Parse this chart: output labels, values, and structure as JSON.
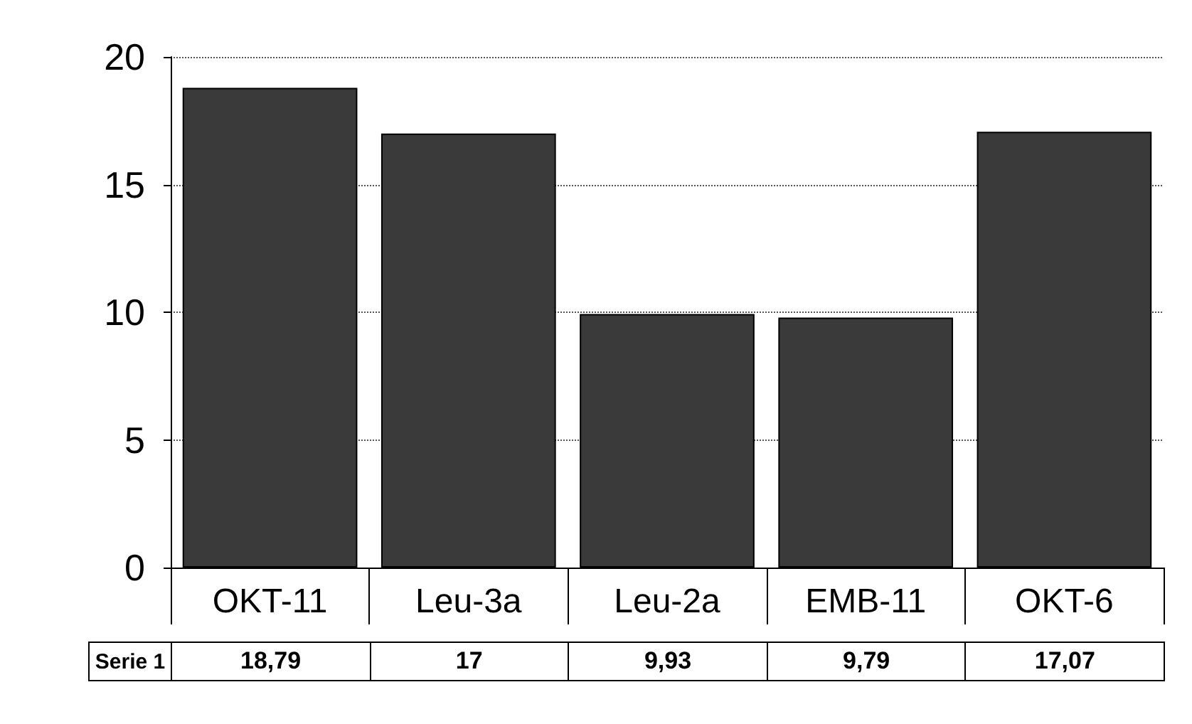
{
  "chart_data": {
    "type": "bar",
    "categories": [
      "OKT-11",
      "Leu-3a",
      "Leu-2a",
      "EMB-11",
      "OKT-6"
    ],
    "series": [
      {
        "name": "Serie 1",
        "color": "#3a3a3a",
        "values": [
          18.79,
          17,
          9.93,
          9.79,
          17.07
        ],
        "value_labels": [
          "18,79",
          "17",
          "9,93",
          "9,79",
          "17,07"
        ]
      }
    ],
    "ylim": [
      0,
      20
    ],
    "yticks": [
      0,
      5,
      10,
      15,
      20
    ],
    "grid": "y",
    "legend": false
  }
}
